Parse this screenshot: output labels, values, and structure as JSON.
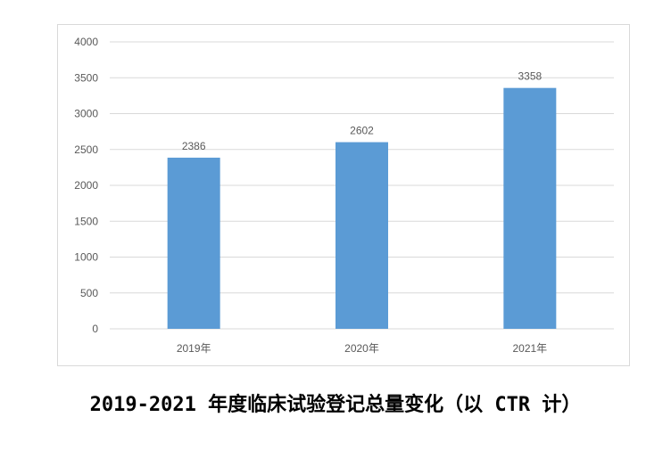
{
  "chart_data": {
    "type": "bar",
    "categories": [
      "2019年",
      "2020年",
      "2021年"
    ],
    "values": [
      2386,
      2602,
      3358
    ],
    "data_labels": [
      "2386",
      "2602",
      "3358"
    ],
    "ylim": [
      0,
      4000
    ],
    "y_ticks": [
      "0",
      "500",
      "1000",
      "1500",
      "2000",
      "2500",
      "3000",
      "3500",
      "4000"
    ],
    "xlabel": "",
    "ylabel": "",
    "grid": true,
    "legend": "none"
  },
  "caption": "2019-2021 年度临床试验登记总量变化（以 CTR 计）",
  "colors": {
    "bar": "#5b9bd5",
    "grid": "#d9d9d9",
    "tick_text": "#595959",
    "frame": "#d9d9d9"
  }
}
